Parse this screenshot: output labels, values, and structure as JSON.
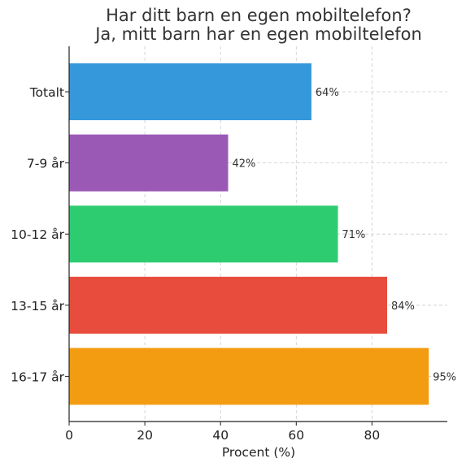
{
  "chart_data": {
    "type": "bar",
    "orientation": "horizontal",
    "title": "Har ditt barn en egen mobiltelefon?",
    "subtitle": "Ja, mitt barn har en egen mobiltelefon",
    "xlabel": "Procent (%)",
    "ylabel": "",
    "xlim": [
      0,
      100
    ],
    "xticks": [
      0,
      20,
      40,
      60,
      80
    ],
    "grid": true,
    "categories": [
      "Totalt",
      "7-9 år",
      "10-12 år",
      "13-15 år",
      "16-17 år"
    ],
    "values": [
      64,
      42,
      71,
      84,
      95
    ],
    "labels": [
      "64%",
      "42%",
      "71%",
      "84%",
      "95%"
    ],
    "colors": [
      "#3498db",
      "#9b59b6",
      "#2ecc71",
      "#e74c3c",
      "#f39c12"
    ]
  }
}
